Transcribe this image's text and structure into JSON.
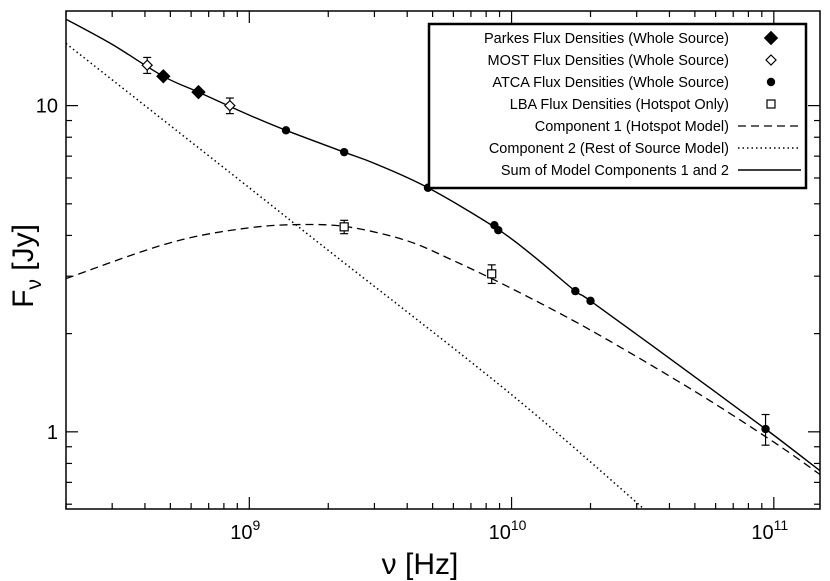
{
  "chart_data": {
    "type": "scatter",
    "x_scale": "log",
    "y_scale": "log",
    "xlabel": "ν [Hz]",
    "ylabel_main": "F",
    "ylabel_sub": "ν",
    "ylabel_rest": " [Jy]",
    "xlim": [
      200000000,
      150000000000
    ],
    "ylim": [
      0.58,
      19.5
    ],
    "legend_position": "top-right",
    "x_ticks": [
      {
        "value": 1000000000,
        "base": "10",
        "exp": "9"
      },
      {
        "value": 10000000000,
        "base": "10",
        "exp": "10"
      },
      {
        "value": 100000000000,
        "base": "10",
        "exp": "11"
      }
    ],
    "y_ticks": [
      {
        "value": 1,
        "label": "1"
      },
      {
        "value": 10,
        "label": "10"
      }
    ],
    "series": [
      {
        "name": "Parkes Flux Densities (Whole Source)",
        "marker": "diamond-filled",
        "points": [
          {
            "x": 470000000,
            "y": 12.3
          },
          {
            "x": 640000000,
            "y": 11.0
          }
        ]
      },
      {
        "name": "MOST Flux Densities (Whole Source)",
        "marker": "diamond-open",
        "points": [
          {
            "x": 408000000,
            "y": 13.3,
            "err": 0.75
          },
          {
            "x": 843000000,
            "y": 10.0,
            "err": 0.55
          }
        ]
      },
      {
        "name": "ATCA Flux Densities (Whole Source)",
        "marker": "circle-filled",
        "points": [
          {
            "x": 1380000000,
            "y": 8.4
          },
          {
            "x": 2300000000,
            "y": 7.2
          },
          {
            "x": 4800000000,
            "y": 5.6
          },
          {
            "x": 8600000000,
            "y": 4.3
          },
          {
            "x": 8900000000,
            "y": 4.15
          },
          {
            "x": 17500000000,
            "y": 2.7
          },
          {
            "x": 20000000000,
            "y": 2.52
          },
          {
            "x": 93000000000,
            "y": 1.02,
            "err": 0.11
          }
        ]
      },
      {
        "name": "LBA Flux Densities (Hotspot Only)",
        "marker": "square-open",
        "points": [
          {
            "x": 2300000000,
            "y": 4.25,
            "err": 0.2
          },
          {
            "x": 8400000000,
            "y": 3.05,
            "err": 0.2
          }
        ]
      },
      {
        "name": "Component 1 (Hotspot Model)",
        "line": "dashed",
        "points": [
          {
            "x": 200000000,
            "y": 2.95
          },
          {
            "x": 500000000,
            "y": 3.8
          },
          {
            "x": 1000000000,
            "y": 4.22
          },
          {
            "x": 1700000000,
            "y": 4.32
          },
          {
            "x": 2500000000,
            "y": 4.22
          },
          {
            "x": 4000000000,
            "y": 3.85
          },
          {
            "x": 6000000000,
            "y": 3.35
          },
          {
            "x": 10000000000,
            "y": 2.75
          },
          {
            "x": 20000000000,
            "y": 2.05
          },
          {
            "x": 50000000000,
            "y": 1.33
          },
          {
            "x": 100000000000,
            "y": 0.93
          },
          {
            "x": 150000000000,
            "y": 0.74
          }
        ]
      },
      {
        "name": "Component 2  (Rest of Source Model)",
        "line": "dotted",
        "points": [
          {
            "x": 200000000,
            "y": 15.5
          },
          {
            "x": 1000000000,
            "y": 5.6
          },
          {
            "x": 2000000000,
            "y": 3.6
          },
          {
            "x": 10000000000,
            "y": 1.3
          },
          {
            "x": 32000000000,
            "y": 0.58
          }
        ]
      },
      {
        "name": "Sum of Model Components 1 and 2",
        "line": "solid",
        "points": [
          {
            "x": 200000000,
            "y": 18.4
          },
          {
            "x": 300000000,
            "y": 15.4
          },
          {
            "x": 470000000,
            "y": 12.3
          },
          {
            "x": 640000000,
            "y": 11.0
          },
          {
            "x": 1000000000,
            "y": 9.35
          },
          {
            "x": 1380000000,
            "y": 8.4
          },
          {
            "x": 2300000000,
            "y": 7.2
          },
          {
            "x": 3000000000,
            "y": 6.65
          },
          {
            "x": 4800000000,
            "y": 5.6
          },
          {
            "x": 8700000000,
            "y": 4.22
          },
          {
            "x": 12000000000,
            "y": 3.48
          },
          {
            "x": 17500000000,
            "y": 2.7
          },
          {
            "x": 20000000000,
            "y": 2.52
          },
          {
            "x": 40000000000,
            "y": 1.68
          },
          {
            "x": 93000000000,
            "y": 1.02
          },
          {
            "x": 150000000000,
            "y": 0.76
          }
        ]
      }
    ]
  }
}
